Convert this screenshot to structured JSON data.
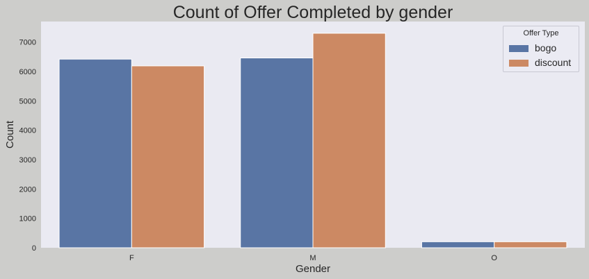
{
  "chart_data": {
    "type": "bar",
    "title": "Count of Offer Completed by gender",
    "xlabel": "Gender",
    "ylabel": "Count",
    "categories": [
      "F",
      "M",
      "O"
    ],
    "series": [
      {
        "name": "bogo",
        "color": "#5975a4",
        "values": [
          6420,
          6460,
          205
        ]
      },
      {
        "name": "discount",
        "color": "#cc8963",
        "values": [
          6190,
          7300,
          205
        ]
      }
    ],
    "ylim": [
      0,
      7700
    ],
    "yticks": [
      0,
      1000,
      2000,
      3000,
      4000,
      5000,
      6000,
      7000
    ],
    "grid": false,
    "legend": {
      "title": "Offer Type",
      "placement": "top-right"
    }
  }
}
